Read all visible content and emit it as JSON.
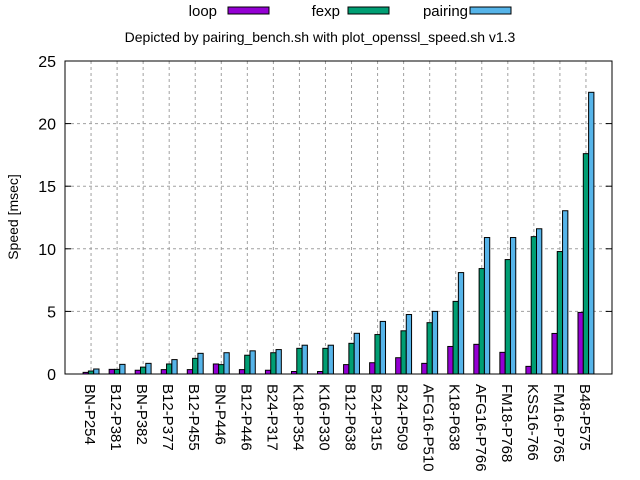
{
  "chart_data": {
    "type": "bar",
    "title": "Depicted by pairing_bench.sh with plot_openssl_speed.sh v1.3",
    "xlabel": "",
    "ylabel": "Speed [msec]",
    "ylim": [
      0,
      25
    ],
    "yticks": [
      0,
      5,
      10,
      15,
      20,
      25
    ],
    "grid": true,
    "legend_position": "top-center",
    "categories": [
      "BN-P254",
      "B12-P381",
      "BN-P382",
      "B12-P377",
      "B12-P455",
      "BN-P446",
      "B12-P446",
      "B24-P317",
      "K18-P354",
      "K16-P330",
      "B12-P638",
      "B24-P315",
      "B24-P509",
      "AFG16-P510",
      "K18-P638",
      "AFG16-P766",
      "FM18-P768",
      "KSS16-766",
      "FM16-P765",
      "B48-P575"
    ],
    "series": [
      {
        "name": "loop",
        "color": "#9400D3",
        "values": [
          0.13,
          0.37,
          0.3,
          0.35,
          0.35,
          0.8,
          0.35,
          0.3,
          0.2,
          0.2,
          0.75,
          0.9,
          1.3,
          0.85,
          2.2,
          2.37,
          1.73,
          0.61,
          3.24,
          4.92
        ]
      },
      {
        "name": "fexp",
        "color": "#009E73",
        "values": [
          0.24,
          0.37,
          0.55,
          0.8,
          1.25,
          0.75,
          1.5,
          1.7,
          2.05,
          2.05,
          2.45,
          3.15,
          3.45,
          4.1,
          5.8,
          8.42,
          9.14,
          10.97,
          9.78,
          17.6
        ]
      },
      {
        "name": "pairing",
        "color": "#56B4E9",
        "values": [
          0.4,
          0.77,
          0.85,
          1.15,
          1.65,
          1.7,
          1.85,
          1.95,
          2.3,
          2.3,
          3.25,
          4.2,
          4.75,
          5.0,
          8.1,
          10.9,
          10.9,
          11.6,
          13.04,
          22.5
        ]
      }
    ]
  }
}
